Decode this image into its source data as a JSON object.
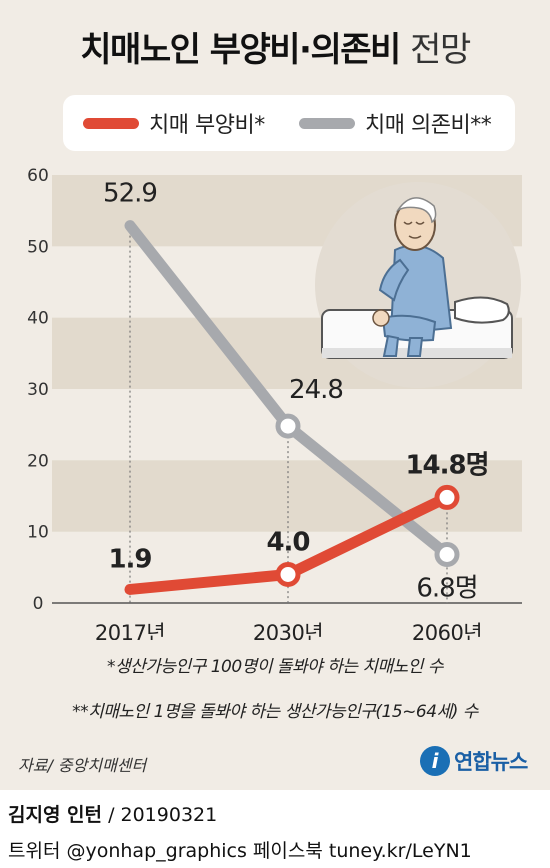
{
  "title": {
    "bold": "치매노인 부양비·의존비",
    "light": "전망"
  },
  "legend": {
    "items": [
      {
        "label": "치매 부양비*",
        "color": "#e04a35"
      },
      {
        "label": "치매 의존비**",
        "color": "#a7a9ad"
      }
    ]
  },
  "chart_data": {
    "type": "line",
    "categories": [
      "2017년",
      "2030년",
      "2060년"
    ],
    "series": [
      {
        "name": "치매 부양비*",
        "values": [
          1.9,
          4.0,
          14.8
        ],
        "labels": [
          "1.9",
          "4.0",
          "14.8명"
        ],
        "color": "#e04a35"
      },
      {
        "name": "치매 의존비**",
        "values": [
          52.9,
          24.8,
          6.8
        ],
        "labels": [
          "52.9",
          "24.8",
          "6.8명"
        ],
        "color": "#a7a9ad"
      }
    ],
    "ylim": [
      0,
      60
    ],
    "yticks": [
      "0",
      "10",
      "20",
      "30",
      "40",
      "50",
      "60"
    ],
    "grid": "alternating horizontal bands"
  },
  "footnotes": [
    "*생산가능인구 100명이 돌봐야 하는 치매노인 수",
    "**치매노인 1명을 돌봐야 하는 생산가능인구(15~64세) 수"
  ],
  "source": "자료/ 중앙치매센터",
  "logo": {
    "mark": "i",
    "text": "연합뉴스"
  },
  "credit": {
    "author": "김지영 인턴",
    "date": "/ 20190321",
    "sns": "트위터 @yonhap_graphics  페이스북 tuney.kr/LeYN1"
  },
  "illustration": "elderly-man-sitting-on-bed"
}
